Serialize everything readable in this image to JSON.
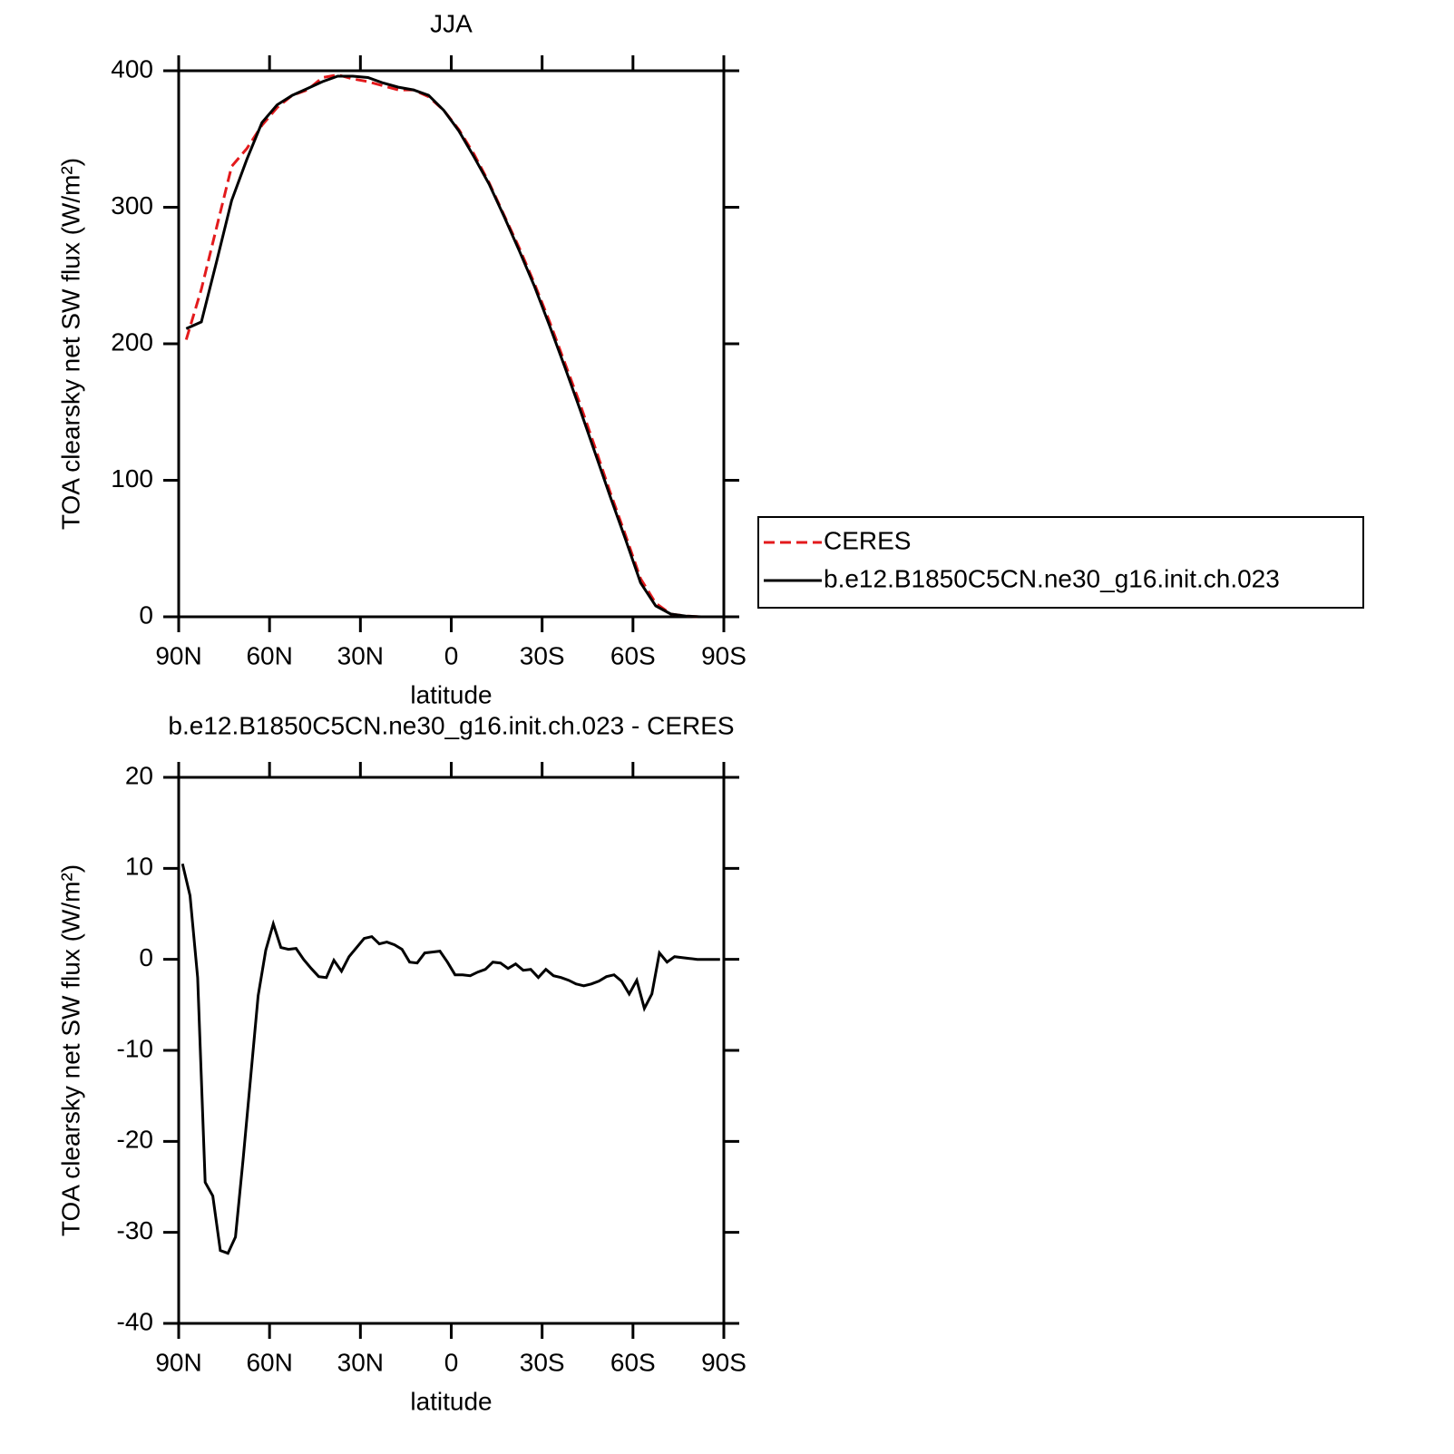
{
  "chart_data": [
    {
      "type": "line",
      "title": "JJA",
      "xlabel": "latitude",
      "ylabel": "TOA clearsky net SW flux (W/m²)",
      "x": [
        87.5,
        82.5,
        77.5,
        72.5,
        67.5,
        62.5,
        57.5,
        52.5,
        47.5,
        42.5,
        37.5,
        32.5,
        27.5,
        22.5,
        17.5,
        12.5,
        7.5,
        2.5,
        -2.5,
        -7.5,
        -12.5,
        -17.5,
        -22.5,
        -27.5,
        -32.5,
        -37.5,
        -42.5,
        -47.5,
        -52.5,
        -57.5,
        -62.5,
        -67.5,
        -72.5,
        -77.5,
        -82.5,
        -87.5
      ],
      "series": [
        {
          "name": "CERES",
          "color": "#e31a1c",
          "line_style": "dashed",
          "values": [
            203,
            240,
            285,
            330,
            343,
            360,
            373,
            382,
            386,
            395,
            397,
            394,
            392,
            389,
            386,
            386,
            381,
            371,
            357,
            339,
            318,
            294,
            270,
            244,
            216,
            186,
            156,
            124,
            91,
            60,
            28,
            10,
            2,
            0.5,
            0,
            0
          ]
        },
        {
          "name": "b.e12.B1850C5CN.ne30_g16.init.ch.023",
          "color": "#000000",
          "line_style": "solid",
          "values": [
            211,
            216,
            260,
            305,
            335,
            362,
            375,
            382,
            387,
            392,
            396,
            396,
            395,
            391,
            388,
            386,
            382,
            371,
            356,
            337,
            317,
            293,
            268,
            242,
            213,
            183,
            152,
            120,
            88,
            57,
            25,
            8,
            2,
            0.5,
            0,
            0
          ]
        }
      ],
      "xlim": [
        90,
        -90
      ],
      "ylim": [
        0,
        400
      ],
      "xticks": [
        {
          "value": 90,
          "label": "90N"
        },
        {
          "value": 60,
          "label": "60N"
        },
        {
          "value": 30,
          "label": "30N"
        },
        0,
        {
          "value": -30,
          "label": "30S"
        },
        {
          "value": -60,
          "label": "60S"
        },
        {
          "value": -90,
          "label": "90S"
        }
      ],
      "yticks": [
        0,
        100,
        200,
        300,
        400
      ],
      "legend": "right"
    },
    {
      "type": "line",
      "title": "b.e12.B1850C5CN.ne30_g16.init.ch.023 - CERES",
      "xlabel": "latitude",
      "ylabel": "TOA clearsky net SW flux (W/m²)",
      "x": [
        88.75,
        86.25,
        83.75,
        81.25,
        78.75,
        76.25,
        73.75,
        71.25,
        68.75,
        66.25,
        63.75,
        61.25,
        58.75,
        56.25,
        53.75,
        51.25,
        48.75,
        46.25,
        43.75,
        41.25,
        38.75,
        36.25,
        33.75,
        31.25,
        28.75,
        26.25,
        23.75,
        21.25,
        18.75,
        16.25,
        13.75,
        11.25,
        8.75,
        6.25,
        3.75,
        1.25,
        -1.25,
        -3.75,
        -6.25,
        -8.75,
        -11.25,
        -13.75,
        -16.25,
        -18.75,
        -21.25,
        -23.75,
        -26.25,
        -28.75,
        -31.25,
        -33.75,
        -36.25,
        -38.75,
        -41.25,
        -43.75,
        -46.25,
        -48.75,
        -51.25,
        -53.75,
        -56.25,
        -58.75,
        -61.25,
        -63.75,
        -66.25,
        -68.75,
        -71.25,
        -73.75,
        -76.25,
        -78.75,
        -81.25,
        -83.75,
        -86.25,
        -88.75
      ],
      "series": [
        {
          "color": "#000000",
          "line_style": "solid",
          "values": [
            10.5,
            7,
            -2,
            -24.5,
            -26,
            -32,
            -32.3,
            -30.5,
            -22,
            -13,
            -4,
            1,
            3.9,
            1.3,
            1.1,
            1.2,
            0,
            -1,
            -1.9,
            -2,
            -0.1,
            -1.3,
            0.3,
            1.3,
            2.3,
            2.5,
            1.7,
            1.9,
            1.6,
            1.1,
            -0.3,
            -0.4,
            0.7,
            0.8,
            0.9,
            -0.3,
            -1.7,
            -1.7,
            -1.8,
            -1.4,
            -1.1,
            -0.3,
            -0.4,
            -1,
            -0.5,
            -1.2,
            -1.1,
            -2,
            -1.1,
            -1.8,
            -2,
            -2.3,
            -2.7,
            -2.9,
            -2.7,
            -2.4,
            -1.9,
            -1.7,
            -2.4,
            -3.8,
            -2.3,
            -5.4,
            -3.8,
            0.7,
            -0.3,
            0.3,
            0.2,
            0.1,
            0,
            0,
            0,
            0
          ]
        }
      ],
      "xlim": [
        90,
        -90
      ],
      "ylim": [
        -40,
        20
      ],
      "xticks": [
        {
          "value": 90,
          "label": "90N"
        },
        {
          "value": 60,
          "label": "60N"
        },
        {
          "value": 30,
          "label": "30N"
        },
        0,
        {
          "value": -30,
          "label": "30S"
        },
        {
          "value": -60,
          "label": "60S"
        },
        {
          "value": -90,
          "label": "90S"
        }
      ],
      "yticks": [
        -40,
        -30,
        -20,
        -10,
        0,
        10,
        20
      ]
    }
  ]
}
